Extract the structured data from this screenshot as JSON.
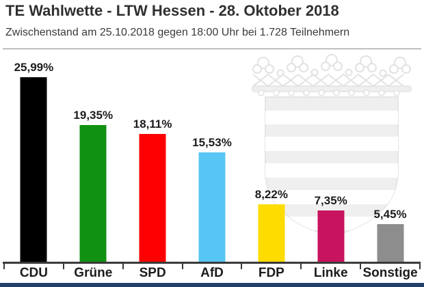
{
  "header": {
    "title": "TE Wahlwette - LTW Hessen - 28. Oktober 2018",
    "subtitle": "Zwischenstand am 25.10.2018 gegen 18:00 Uhr bei 1.728 Teilnehmern"
  },
  "chart_data": {
    "type": "bar",
    "title": "TE Wahlwette - LTW Hessen - 28. Oktober 2018",
    "subtitle": "Zwischenstand am 25.10.2018 gegen 18:00 Uhr bei 1.728 Teilnehmern",
    "categories": [
      "CDU",
      "Grüne",
      "SPD",
      "AfD",
      "FDP",
      "Linke",
      "Sonstige"
    ],
    "values": [
      25.99,
      19.35,
      18.11,
      15.53,
      8.22,
      7.35,
      5.45
    ],
    "value_labels": [
      "25,99%",
      "19,35%",
      "18,11%",
      "15,53%",
      "8,22%",
      "7,35%",
      "5,45%"
    ],
    "bar_colors": [
      "#000000",
      "#119111",
      "#ff0000",
      "#58c6f4",
      "#fedc00",
      "#c8145e",
      "#8d8d8d"
    ],
    "xlabel": "",
    "ylabel": "",
    "ylim": [
      0,
      27
    ],
    "grid": false,
    "legend": "none",
    "axis_color": "#3a3a3a"
  },
  "watermark": {
    "name": "hessen-coat-of-arms",
    "fill": "#efefef",
    "stroke": "#e5e5e5"
  },
  "footer": {
    "accent_bar_color": "#22406a"
  },
  "colors": {
    "title_text": "#303030",
    "subtitle_text": "#3a3a3a",
    "label_text": "#1c1c1c",
    "divider": "#8a8a8a"
  }
}
